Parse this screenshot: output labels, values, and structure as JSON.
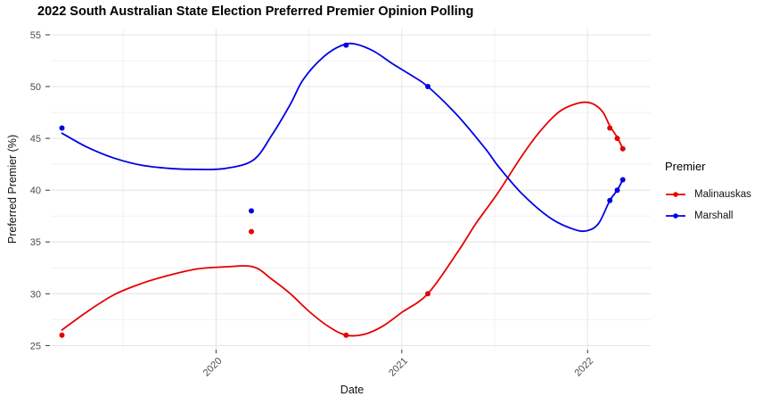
{
  "chart_data": {
    "type": "line",
    "title": "2022 South Australian State Election Preferred Premier Opinion Polling",
    "xlabel": "Date",
    "ylabel": "Preferred Premier (%)",
    "x_domain": [
      2019.11,
      2022.34
    ],
    "y_domain": [
      24.6,
      55.6
    ],
    "x_ticks": [
      {
        "value": 2020,
        "label": "2020"
      },
      {
        "value": 2021,
        "label": "2021"
      },
      {
        "value": 2022,
        "label": "2022"
      }
    ],
    "x_minor_ticks": [
      2019.5,
      2020.5,
      2021.5
    ],
    "y_ticks": [
      {
        "value": 25,
        "label": "25"
      },
      {
        "value": 30,
        "label": "30"
      },
      {
        "value": 35,
        "label": "35"
      },
      {
        "value": 40,
        "label": "40"
      },
      {
        "value": 45,
        "label": "45"
      },
      {
        "value": 50,
        "label": "50"
      },
      {
        "value": 55,
        "label": "55"
      }
    ],
    "y_minor_ticks": [
      27.5,
      32.5,
      37.5,
      42.5,
      47.5,
      52.5
    ],
    "grid": true,
    "legend": {
      "title": "Premier",
      "position": "right"
    },
    "colors": {
      "major_grid": "#e4e4e4",
      "minor_grid": "#f1f1f1",
      "axis_text": "#4d4d4d",
      "tick_mark": "#333333"
    },
    "series": [
      {
        "name": "Malinauskas",
        "color": "#e60000",
        "points": [
          [
            2019.17,
            26
          ],
          [
            2020.19,
            36
          ],
          [
            2020.7,
            26
          ],
          [
            2021.14,
            30
          ],
          [
            2022.12,
            46
          ],
          [
            2022.16,
            45
          ],
          [
            2022.19,
            44
          ]
        ],
        "trend": [
          [
            2019.17,
            26.5
          ],
          [
            2019.3,
            28.2
          ],
          [
            2019.45,
            29.9
          ],
          [
            2019.6,
            31.0
          ],
          [
            2019.75,
            31.8
          ],
          [
            2019.9,
            32.4
          ],
          [
            2020.05,
            32.6
          ],
          [
            2020.2,
            32.6
          ],
          [
            2020.3,
            31.4
          ],
          [
            2020.4,
            30.0
          ],
          [
            2020.5,
            28.3
          ],
          [
            2020.6,
            26.9
          ],
          [
            2020.7,
            26.0
          ],
          [
            2020.8,
            26.1
          ],
          [
            2020.9,
            26.9
          ],
          [
            2021.0,
            28.2
          ],
          [
            2021.14,
            30.0
          ],
          [
            2021.3,
            34.0
          ],
          [
            2021.4,
            36.8
          ],
          [
            2021.52,
            39.8
          ],
          [
            2021.65,
            43.4
          ],
          [
            2021.75,
            45.8
          ],
          [
            2021.85,
            47.6
          ],
          [
            2021.95,
            48.4
          ],
          [
            2022.02,
            48.4
          ],
          [
            2022.08,
            47.6
          ],
          [
            2022.12,
            46.2
          ],
          [
            2022.16,
            45.1
          ],
          [
            2022.19,
            44.0
          ]
        ]
      },
      {
        "name": "Marshall",
        "color": "#0000e6",
        "points": [
          [
            2019.17,
            46
          ],
          [
            2020.19,
            38
          ],
          [
            2020.7,
            54
          ],
          [
            2021.14,
            50
          ],
          [
            2022.12,
            39
          ],
          [
            2022.16,
            40
          ],
          [
            2022.19,
            41
          ]
        ],
        "trend": [
          [
            2019.17,
            45.5
          ],
          [
            2019.3,
            44.2
          ],
          [
            2019.45,
            43.1
          ],
          [
            2019.6,
            42.4
          ],
          [
            2019.75,
            42.1
          ],
          [
            2019.9,
            42.0
          ],
          [
            2020.05,
            42.1
          ],
          [
            2020.2,
            42.9
          ],
          [
            2020.3,
            45.3
          ],
          [
            2020.4,
            48.3
          ],
          [
            2020.47,
            50.7
          ],
          [
            2020.58,
            52.9
          ],
          [
            2020.68,
            54.0
          ],
          [
            2020.75,
            54.1
          ],
          [
            2020.85,
            53.4
          ],
          [
            2020.95,
            52.2
          ],
          [
            2021.05,
            51.1
          ],
          [
            2021.14,
            50.0
          ],
          [
            2021.3,
            47.2
          ],
          [
            2021.45,
            44.0
          ],
          [
            2021.52,
            42.3
          ],
          [
            2021.65,
            39.6
          ],
          [
            2021.8,
            37.3
          ],
          [
            2021.93,
            36.2
          ],
          [
            2022.0,
            36.1
          ],
          [
            2022.06,
            36.8
          ],
          [
            2022.12,
            39.0
          ],
          [
            2022.16,
            40.0
          ],
          [
            2022.19,
            41.0
          ]
        ]
      }
    ]
  }
}
